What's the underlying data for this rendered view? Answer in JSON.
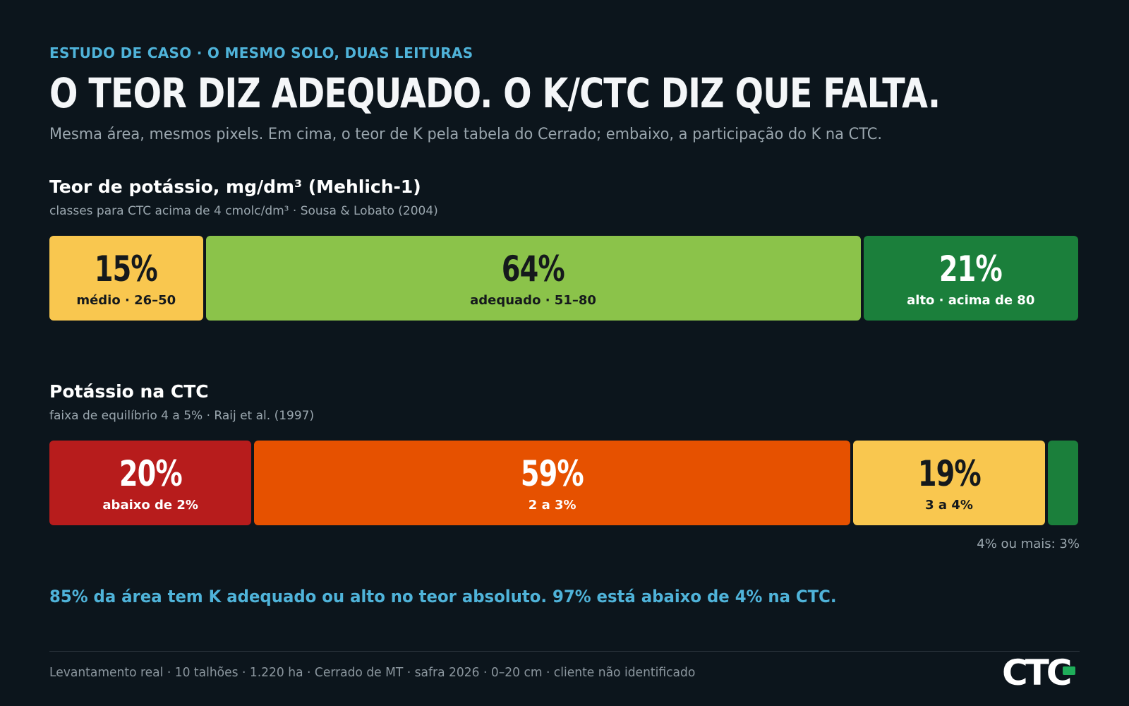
{
  "header": {
    "eyebrow": "ESTUDO DE CASO · O MESMO SOLO, DUAS LEITURAS",
    "title": "O TEOR DIZ ADEQUADO. O K/CTC DIZ QUE FALTA.",
    "subtitle": "Mesma área, mesmos pixels. Em cima, o teor de K pela tabela do Cerrado; embaixo, a participação do K na CTC."
  },
  "chart_data": [
    {
      "type": "bar",
      "orientation": "horizontal-stacked",
      "title": "Teor de potássio, mg/dm³ (Mehlich-1)",
      "subtitle": "classes para CTC acima de 4 cmolc/dm³ · Sousa & Lobato (2004)",
      "segments": [
        {
          "value": 15,
          "pct_label": "15%",
          "label": "médio · 26–50",
          "color": "#f9c74f",
          "text": "dark"
        },
        {
          "value": 64,
          "pct_label": "64%",
          "label": "adequado · 51–80",
          "color": "#8bc34a",
          "text": "dark"
        },
        {
          "value": 21,
          "pct_label": "21%",
          "label": "alto · acima de 80",
          "color": "#1b7f3b",
          "text": "light"
        }
      ]
    },
    {
      "type": "bar",
      "orientation": "horizontal-stacked",
      "title": "Potássio na CTC",
      "subtitle": "faixa de equilíbrio 4 a 5% · Raij et al. (1997)",
      "segments": [
        {
          "value": 20,
          "pct_label": "20%",
          "label": "abaixo de 2%",
          "color": "#b71c1c",
          "text": "light"
        },
        {
          "value": 59,
          "pct_label": "59%",
          "label": "2 a 3%",
          "color": "#e65100",
          "text": "light"
        },
        {
          "value": 19,
          "pct_label": "19%",
          "label": "3 a 4%",
          "color": "#f9c74f",
          "text": "dark"
        },
        {
          "value": 3,
          "pct_label": "",
          "label": "",
          "color": "#1b7f3b",
          "text": "light"
        }
      ],
      "note": "4% ou mais: 3%"
    }
  ],
  "takeaway": "85% da área tem K adequado ou alto no teor absoluto. 97% está abaixo de 4% na CTC.",
  "footer": "Levantamento real · 10 talhões · 1.220 ha · Cerrado de MT · safra 2026 · 0–20 cm · cliente não identificado",
  "logo": {
    "text": "CTC",
    "accent": "#1fae5a"
  }
}
